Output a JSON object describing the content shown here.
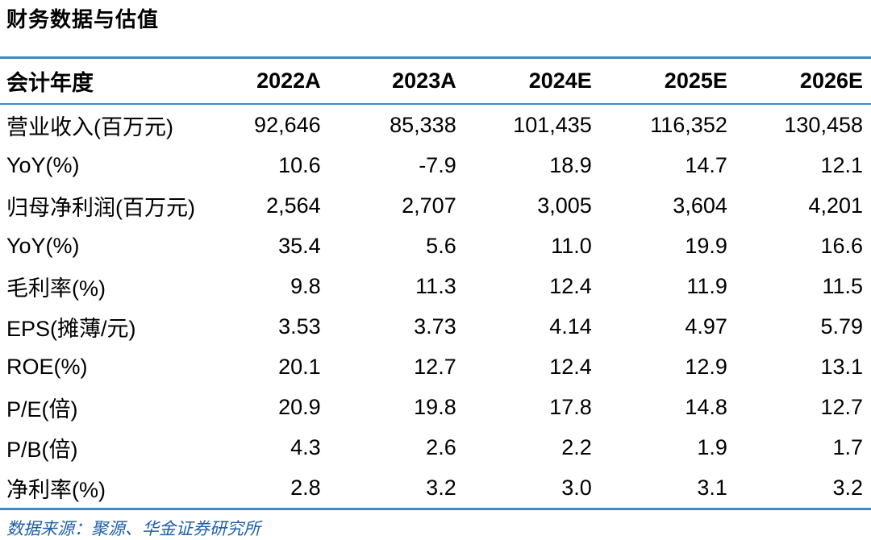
{
  "title": "财务数据与估值",
  "table": {
    "headers": [
      "会计年度",
      "2022A",
      "2023A",
      "2024E",
      "2025E",
      "2026E"
    ],
    "rows": [
      [
        "营业收入(百万元)",
        "92,646",
        "85,338",
        "101,435",
        "116,352",
        "130,458"
      ],
      [
        "YoY(%)",
        "10.6",
        "-7.9",
        "18.9",
        "14.7",
        "12.1"
      ],
      [
        "归母净利润(百万元)",
        "2,564",
        "2,707",
        "3,005",
        "3,604",
        "4,201"
      ],
      [
        "YoY(%)",
        "35.4",
        "5.6",
        "11.0",
        "19.9",
        "16.6"
      ],
      [
        "毛利率(%)",
        "9.8",
        "11.3",
        "12.4",
        "11.9",
        "11.5"
      ],
      [
        "EPS(摊薄/元)",
        "3.53",
        "3.73",
        "4.14",
        "4.97",
        "5.79"
      ],
      [
        "ROE(%)",
        "20.1",
        "12.7",
        "12.4",
        "12.9",
        "13.1"
      ],
      [
        "P/E(倍)",
        "20.9",
        "19.8",
        "17.8",
        "14.8",
        "12.7"
      ],
      [
        "P/B(倍)",
        "4.3",
        "2.6",
        "2.2",
        "1.9",
        "1.7"
      ],
      [
        "净利率(%)",
        "2.8",
        "3.2",
        "3.0",
        "3.1",
        "3.2"
      ]
    ]
  },
  "source": "数据来源：聚源、华金证券研究所",
  "colors": {
    "rule": "#3a8cc4",
    "source_text": "#1f5fa8"
  }
}
